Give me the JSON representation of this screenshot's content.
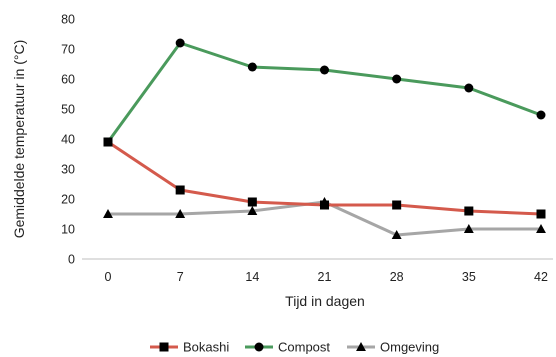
{
  "chart_data": {
    "type": "line",
    "x": [
      0,
      7,
      14,
      21,
      28,
      35,
      42
    ],
    "x_tick_labels": [
      "0",
      "7",
      "14",
      "21",
      "28",
      "35",
      "42"
    ],
    "y_tick_labels": [
      "0",
      "10",
      "20",
      "30",
      "40",
      "50",
      "60",
      "70",
      "80"
    ],
    "xlabel": "Tijd in dagen",
    "ylabel": "Gemiddelde temperatuur in (°C)",
    "ylim": [
      0,
      80
    ],
    "grid": false,
    "legend_position": "bottom",
    "series": [
      {
        "name": "Bokashi",
        "values": [
          39,
          23,
          19,
          18,
          18,
          16,
          15
        ],
        "color": "#d45a4c",
        "marker": "square"
      },
      {
        "name": "Compost",
        "values": [
          39,
          72,
          64,
          63,
          60,
          57,
          48
        ],
        "color": "#4a9a5c",
        "marker": "circle"
      },
      {
        "name": "Omgeving",
        "values": [
          15,
          15,
          16,
          19,
          8,
          10,
          10
        ],
        "color": "#a6a6a6",
        "marker": "triangle"
      }
    ]
  }
}
